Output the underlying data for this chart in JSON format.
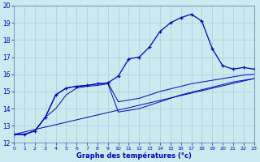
{
  "xlabel": "Graphe des températures (°c)",
  "xlim": [
    0,
    23
  ],
  "ylim": [
    12,
    20
  ],
  "xticks": [
    0,
    1,
    2,
    3,
    4,
    5,
    6,
    7,
    8,
    9,
    10,
    11,
    12,
    13,
    14,
    15,
    16,
    17,
    18,
    19,
    20,
    21,
    22,
    23
  ],
  "yticks": [
    12,
    13,
    14,
    15,
    16,
    17,
    18,
    19,
    20
  ],
  "bg_color": "#cce9f0",
  "grid_color": "#99ccd9",
  "line_color": "#0000bb",
  "line1_x": [
    0,
    1,
    2,
    3,
    4,
    5,
    6,
    7,
    8,
    9,
    10,
    11,
    12,
    13,
    14,
    15,
    16,
    17,
    18,
    19,
    20,
    21,
    22,
    23
  ],
  "line1_y": [
    12.5,
    12.5,
    12.7,
    13.5,
    14.8,
    15.2,
    15.3,
    15.35,
    15.45,
    15.5,
    15.9,
    16.9,
    17.0,
    17.6,
    18.5,
    19.0,
    19.3,
    19.5,
    19.1,
    17.5,
    16.5,
    16.3,
    16.4,
    16.3
  ],
  "line2_x": [
    0,
    1,
    2,
    3,
    4,
    5,
    6,
    7,
    8,
    9,
    10,
    11,
    12,
    13,
    14,
    15,
    16,
    17,
    18,
    19,
    20,
    21,
    22,
    23
  ],
  "line2_y": [
    12.5,
    12.5,
    12.7,
    13.5,
    14.8,
    15.2,
    15.3,
    15.35,
    15.45,
    15.5,
    14.4,
    14.5,
    14.6,
    14.8,
    15.0,
    15.15,
    15.3,
    15.45,
    15.55,
    15.65,
    15.75,
    15.85,
    15.95,
    16.0
  ],
  "line3_x": [
    0,
    1,
    2,
    3,
    4,
    5,
    6,
    7,
    8,
    9,
    10,
    11,
    12,
    13,
    14,
    15,
    16,
    17,
    18,
    19,
    20,
    21,
    22,
    23
  ],
  "line3_y": [
    12.5,
    12.5,
    12.7,
    13.5,
    14.0,
    14.8,
    15.2,
    15.3,
    15.35,
    15.45,
    13.8,
    13.9,
    14.0,
    14.2,
    14.4,
    14.6,
    14.8,
    14.95,
    15.1,
    15.25,
    15.4,
    15.55,
    15.65,
    15.75
  ],
  "line4_x": [
    0,
    23
  ],
  "line4_y": [
    12.5,
    15.75
  ]
}
